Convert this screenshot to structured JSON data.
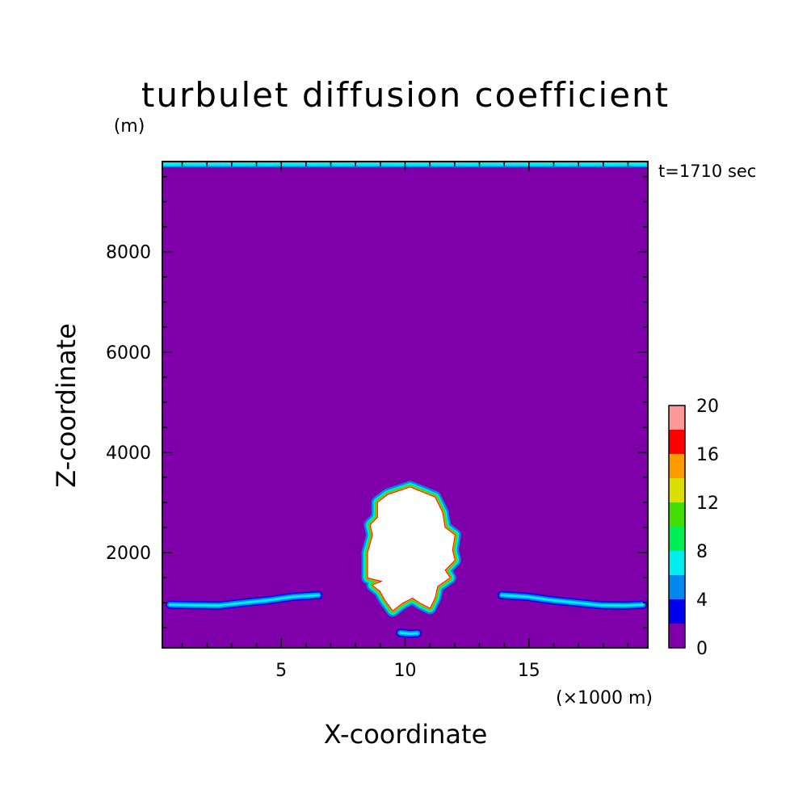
{
  "chart_data": {
    "type": "heatmap",
    "title": "turbulet diffusion coefficient",
    "ylabel": "Z-coordinate",
    "y_unit": "(m)",
    "xlabel": "X-coordinate",
    "x_unit": "(×1000 m)",
    "time_label": "t=1710 sec",
    "xlim": [
      0.2,
      19.8
    ],
    "ylim": [
      100,
      9800
    ],
    "x_ticks": [
      5,
      10,
      15
    ],
    "y_ticks": [
      2000,
      4000,
      6000,
      8000
    ],
    "background": {
      "value_range": [
        0,
        2
      ],
      "color": "#7f00aa"
    },
    "colorbar": {
      "levels": [
        0,
        2,
        4,
        6,
        8,
        10,
        12,
        14,
        16,
        18,
        20
      ],
      "tick_labels": [
        "0",
        "4",
        "8",
        "12",
        "16",
        "20"
      ],
      "colors": [
        "#7f00aa",
        "#0000ee",
        "#0088ee",
        "#00eeee",
        "#00ee55",
        "#44dd00",
        "#dddd00",
        "#ff9900",
        "#ff0000",
        "#ff9999"
      ]
    },
    "top_layer": {
      "z_range": [
        9700,
        9800
      ],
      "value_range": [
        6,
        8
      ],
      "color": "#00eeee"
    },
    "features": [
      {
        "name": "high-diffusion core",
        "value_above": 20,
        "color": "#ffffff",
        "polygon": [
          [
            10.2,
            3300
          ],
          [
            11.2,
            3100
          ],
          [
            11.5,
            2800
          ],
          [
            11.6,
            2500
          ],
          [
            12.0,
            2350
          ],
          [
            11.9,
            2050
          ],
          [
            12.0,
            1850
          ],
          [
            11.6,
            1650
          ],
          [
            11.8,
            1500
          ],
          [
            11.3,
            1330
          ],
          [
            11.2,
            1100
          ],
          [
            11.0,
            900
          ],
          [
            10.6,
            1000
          ],
          [
            10.3,
            1100
          ],
          [
            9.9,
            1000
          ],
          [
            9.5,
            850
          ],
          [
            9.2,
            1050
          ],
          [
            9.0,
            1230
          ],
          [
            8.7,
            1350
          ],
          [
            9.1,
            1430
          ],
          [
            8.5,
            1500
          ],
          [
            8.5,
            1700
          ],
          [
            8.5,
            2000
          ],
          [
            8.7,
            2350
          ],
          [
            8.6,
            2550
          ],
          [
            8.9,
            2700
          ],
          [
            8.9,
            3000
          ],
          [
            9.3,
            3150
          ]
        ]
      },
      {
        "name": "left-low-band",
        "value_range": [
          4,
          8
        ],
        "path": [
          [
            0.5,
            960
          ],
          [
            1.5,
            950
          ],
          [
            2.5,
            945
          ],
          [
            3.5,
            1000
          ],
          [
            4.5,
            1050
          ],
          [
            5.5,
            1120
          ],
          [
            6.5,
            1150
          ]
        ]
      },
      {
        "name": "right-low-band",
        "value_range": [
          4,
          8
        ],
        "path": [
          [
            13.9,
            1150
          ],
          [
            14.9,
            1120
          ],
          [
            15.9,
            1050
          ],
          [
            16.9,
            1000
          ],
          [
            17.9,
            950
          ],
          [
            18.9,
            945
          ],
          [
            19.6,
            960
          ]
        ]
      },
      {
        "name": "small-surface-spot",
        "value_range": [
          4,
          8
        ],
        "path": [
          [
            9.8,
            400
          ],
          [
            10.2,
            380
          ],
          [
            10.5,
            390
          ]
        ]
      }
    ]
  }
}
